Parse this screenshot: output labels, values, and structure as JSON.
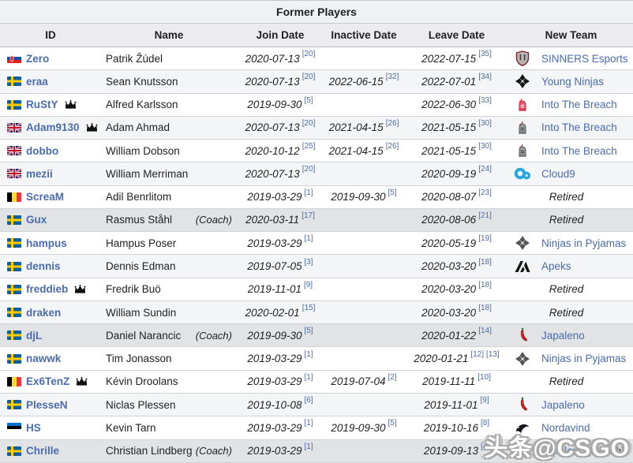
{
  "table": {
    "title": "Former Players",
    "columns": [
      "ID",
      "Name",
      "Join Date",
      "Inactive Date",
      "Leave Date",
      "New Team"
    ],
    "rows": [
      {
        "id": "Zero",
        "flag": "sk",
        "crown": false,
        "name": "Patrik Žúdel",
        "coach": false,
        "shade": "white",
        "join": {
          "date": "2020-07-13",
          "refs": [
            "[20]"
          ]
        },
        "inactive": null,
        "leave": {
          "date": "2022-07-15",
          "refs": [
            "[35]"
          ]
        },
        "team": {
          "label": "SINNERS Esports",
          "icon": "sinners-esports-icon",
          "retired": false,
          "coach": false
        }
      },
      {
        "id": "eraa",
        "flag": "se",
        "crown": false,
        "name": "Sean Knutsson",
        "coach": false,
        "shade": "stripe",
        "join": {
          "date": "2020-07-13",
          "refs": [
            "[20]"
          ]
        },
        "inactive": {
          "date": "2022-06-15",
          "refs": [
            "[32]"
          ]
        },
        "leave": {
          "date": "2022-07-01",
          "refs": [
            "[34]"
          ]
        },
        "team": {
          "label": "Young Ninjas",
          "icon": "young-ninjas-icon",
          "retired": false,
          "coach": false
        }
      },
      {
        "id": "RuStY",
        "flag": "se",
        "crown": true,
        "name": "Alfred Karlsson",
        "coach": false,
        "shade": "white",
        "join": {
          "date": "2019-09-30",
          "refs": [
            "[5]"
          ]
        },
        "inactive": null,
        "leave": {
          "date": "2022-06-30",
          "refs": [
            "[33]"
          ]
        },
        "team": {
          "label": "Into The Breach",
          "icon": "into-the-breach-red-icon",
          "retired": false,
          "coach": false
        }
      },
      {
        "id": "Adam9130",
        "flag": "gb",
        "crown": true,
        "name": "Adam Ahmad",
        "coach": false,
        "shade": "stripe",
        "join": {
          "date": "2020-07-13",
          "refs": [
            "[20]"
          ]
        },
        "inactive": {
          "date": "2021-04-15",
          "refs": [
            "[26]"
          ]
        },
        "leave": {
          "date": "2021-05-15",
          "refs": [
            "[30]"
          ]
        },
        "team": {
          "label": "Into The Breach",
          "icon": "into-the-breach-icon",
          "retired": false,
          "coach": false
        }
      },
      {
        "id": "dobbo",
        "flag": "gb",
        "crown": false,
        "name": "William Dobson",
        "coach": false,
        "shade": "white",
        "join": {
          "date": "2020-10-12",
          "refs": [
            "[25]"
          ]
        },
        "inactive": {
          "date": "2021-04-15",
          "refs": [
            "[26]"
          ]
        },
        "leave": {
          "date": "2021-05-15",
          "refs": [
            "[30]"
          ]
        },
        "team": {
          "label": "Into The Breach",
          "icon": "into-the-breach-icon",
          "retired": false,
          "coach": false
        }
      },
      {
        "id": "mezii",
        "flag": "gb",
        "crown": false,
        "name": "William Merriman",
        "coach": false,
        "shade": "stripe",
        "join": {
          "date": "2020-07-13",
          "refs": [
            "[20]"
          ]
        },
        "inactive": null,
        "leave": {
          "date": "2020-09-19",
          "refs": [
            "[24]"
          ]
        },
        "team": {
          "label": "Cloud9",
          "icon": "cloud9-icon",
          "retired": false,
          "coach": false
        }
      },
      {
        "id": "ScreaM",
        "flag": "be",
        "crown": false,
        "name": "Adil Benrlitom",
        "coach": false,
        "shade": "white",
        "join": {
          "date": "2019-03-29",
          "refs": [
            "[1]"
          ]
        },
        "inactive": {
          "date": "2019-09-30",
          "refs": [
            "[5]"
          ]
        },
        "leave": {
          "date": "2020-08-07",
          "refs": [
            "[23]"
          ]
        },
        "team": {
          "label": "Retired",
          "icon": null,
          "retired": true,
          "coach": false
        }
      },
      {
        "id": "Gux",
        "flag": "se",
        "crown": false,
        "name": "Rasmus Ståhl",
        "coach": true,
        "shade": "coach",
        "join": {
          "date": "2020-03-11",
          "refs": [
            "[17]"
          ]
        },
        "inactive": null,
        "leave": {
          "date": "2020-08-06",
          "refs": [
            "[21]"
          ]
        },
        "team": {
          "label": "Retired",
          "icon": null,
          "retired": true,
          "coach": false
        }
      },
      {
        "id": "hampus",
        "flag": "se",
        "crown": false,
        "name": "Hampus Poser",
        "coach": false,
        "shade": "white",
        "join": {
          "date": "2019-03-29",
          "refs": [
            "[1]"
          ]
        },
        "inactive": null,
        "leave": {
          "date": "2020-05-19",
          "refs": [
            "[19]"
          ]
        },
        "team": {
          "label": "Ninjas in Pyjamas",
          "icon": "ninjas-in-pyjamas-icon",
          "retired": false,
          "coach": false
        }
      },
      {
        "id": "dennis",
        "flag": "se",
        "crown": false,
        "name": "Dennis Edman",
        "coach": false,
        "shade": "stripe",
        "join": {
          "date": "2019-07-05",
          "refs": [
            "[3]"
          ]
        },
        "inactive": null,
        "leave": {
          "date": "2020-03-20",
          "refs": [
            "[18]"
          ]
        },
        "team": {
          "label": "Apeks",
          "icon": "apeks-icon",
          "retired": false,
          "coach": false
        }
      },
      {
        "id": "freddieb",
        "flag": "se",
        "crown": true,
        "name": "Fredrik Buö",
        "coach": false,
        "shade": "white",
        "join": {
          "date": "2019-11-01",
          "refs": [
            "[9]"
          ]
        },
        "inactive": null,
        "leave": {
          "date": "2020-03-20",
          "refs": [
            "[18]"
          ]
        },
        "team": {
          "label": "Retired",
          "icon": null,
          "retired": true,
          "coach": false
        }
      },
      {
        "id": "draken",
        "flag": "se",
        "crown": false,
        "name": "William Sundin",
        "coach": false,
        "shade": "stripe",
        "join": {
          "date": "2020-02-01",
          "refs": [
            "[15]"
          ]
        },
        "inactive": null,
        "leave": {
          "date": "2020-03-20",
          "refs": [
            "[18]"
          ]
        },
        "team": {
          "label": "Retired",
          "icon": null,
          "retired": true,
          "coach": false
        }
      },
      {
        "id": "djL",
        "flag": "se",
        "crown": false,
        "name": "Daniel Narancic",
        "coach": true,
        "shade": "coach",
        "join": {
          "date": "2019-09-30",
          "refs": [
            "[5]"
          ]
        },
        "inactive": null,
        "leave": {
          "date": "2020-01-22",
          "refs": [
            "[14]"
          ]
        },
        "team": {
          "label": "Japaleno",
          "icon": "japaleno-icon",
          "retired": false,
          "coach": false
        }
      },
      {
        "id": "nawwk",
        "flag": "se",
        "crown": false,
        "name": "Tim Jonasson",
        "coach": false,
        "shade": "white",
        "join": {
          "date": "2019-03-29",
          "refs": [
            "[1]"
          ]
        },
        "inactive": null,
        "leave": {
          "date": "2020-01-21",
          "refs": [
            "[12]",
            "[13]"
          ]
        },
        "team": {
          "label": "Ninjas in Pyjamas",
          "icon": "ninjas-in-pyjamas-icon",
          "retired": false,
          "coach": false
        }
      },
      {
        "id": "Ex6TenZ",
        "flag": "be",
        "crown": true,
        "name": "Kévin Droolans",
        "coach": false,
        "shade": "white",
        "join": {
          "date": "2019-03-29",
          "refs": [
            "[1]"
          ]
        },
        "inactive": {
          "date": "2019-07-04",
          "refs": [
            "[2]"
          ]
        },
        "leave": {
          "date": "2019-11-11",
          "refs": [
            "[10]"
          ]
        },
        "team": {
          "label": "Retired",
          "icon": null,
          "retired": true,
          "coach": false
        }
      },
      {
        "id": "PlesseN",
        "flag": "se",
        "crown": false,
        "name": "Niclas Plessen",
        "coach": false,
        "shade": "stripe",
        "join": {
          "date": "2019-10-08",
          "refs": [
            "[6]"
          ]
        },
        "inactive": null,
        "leave": {
          "date": "2019-11-01",
          "refs": [
            "[9]"
          ]
        },
        "team": {
          "label": "Japaleno",
          "icon": "japaleno-icon",
          "retired": false,
          "coach": false
        }
      },
      {
        "id": "HS",
        "flag": "ee",
        "crown": false,
        "name": "Kevin Tarn",
        "coach": false,
        "shade": "white",
        "join": {
          "date": "2019-03-29",
          "refs": [
            "[1]"
          ]
        },
        "inactive": {
          "date": "2019-09-30",
          "refs": [
            "[5]"
          ]
        },
        "leave": {
          "date": "2019-10-16",
          "refs": [
            "[8]"
          ]
        },
        "team": {
          "label": "Nordavind",
          "icon": "nordavind-icon",
          "retired": false,
          "coach": false
        }
      },
      {
        "id": "Chrille",
        "flag": "se",
        "crown": false,
        "name": "Christian Lindberg",
        "coach": true,
        "shade": "coach",
        "join": {
          "date": "2019-03-29",
          "refs": [
            "[1]"
          ]
        },
        "inactive": null,
        "leave": {
          "date": "2019-09-13",
          "refs": [
            "[4]"
          ]
        },
        "team": {
          "label": "Japaleno",
          "icon": "japaleno-icon",
          "retired": false,
          "coach": true
        }
      }
    ]
  },
  "labels": {
    "coach": "(Coach)"
  },
  "watermark": "头条@CSGO",
  "colors": {
    "link": "#4b6cb0",
    "title_bg": "#f0f1f2",
    "header_bg": "#ececee",
    "stripe_bg": "#f4f5f6",
    "coach_row_bg": "#e2e3e5",
    "border": "#c3c8cd"
  }
}
